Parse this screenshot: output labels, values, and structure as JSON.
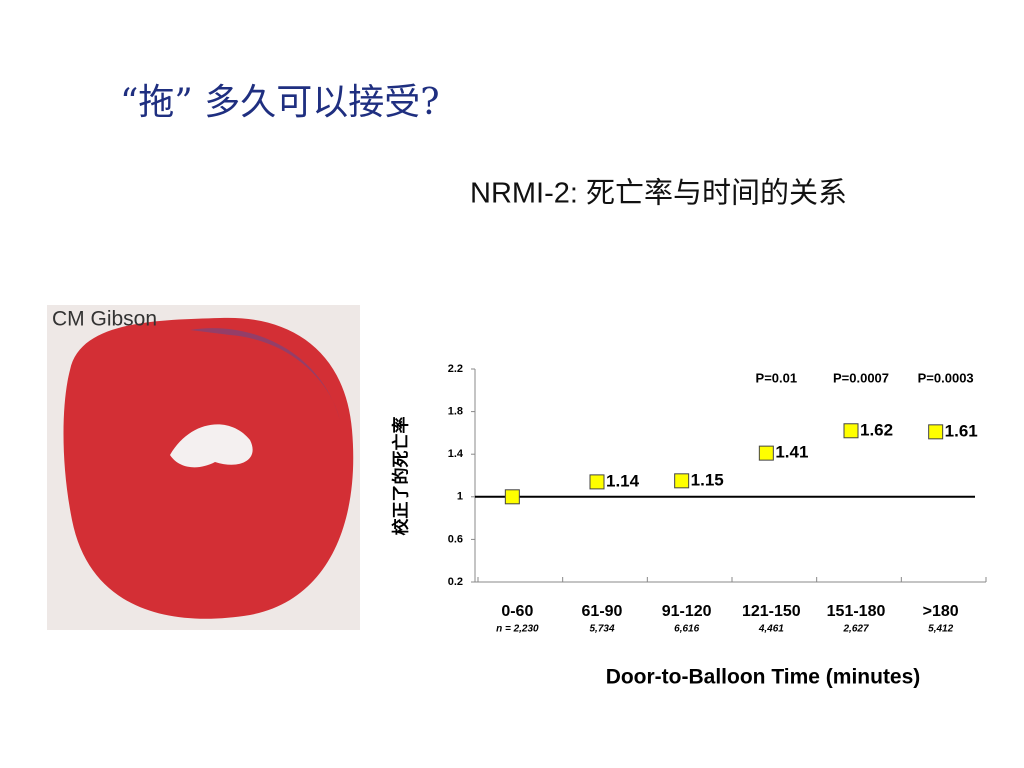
{
  "slide": {
    "title": "“拖” 多久可以接受?",
    "subtitle": "NRMI-2: 死亡率与时间的关系",
    "image_caption": "CM Gibson"
  },
  "chart_data": {
    "type": "scatter",
    "categories": [
      "0-60",
      "61-90",
      "91-120",
      "121-150",
      "151-180",
      ">180"
    ],
    "sample_sizes": [
      "n = 2,230",
      "5,734",
      "6,616",
      "4,461",
      "2,627",
      "5,412"
    ],
    "values": [
      1,
      1.14,
      1.15,
      1.41,
      1.62,
      1.61
    ],
    "value_labels": [
      null,
      "1.14",
      "1.15",
      "1.41",
      "1.62",
      "1.61"
    ],
    "p_values": [
      null,
      null,
      null,
      "P=0.01",
      "P=0.0007",
      "P=0.0003"
    ],
    "color": "#ffff00",
    "reference_line": 1,
    "ylim": [
      0.2,
      2.2
    ],
    "yticks": [
      0.2,
      0.6,
      1,
      1.4,
      1.8,
      2.2
    ],
    "grid": false,
    "x_label": "Door-to-Balloon Time (minutes)",
    "y_label": "校正了的死亡率"
  }
}
